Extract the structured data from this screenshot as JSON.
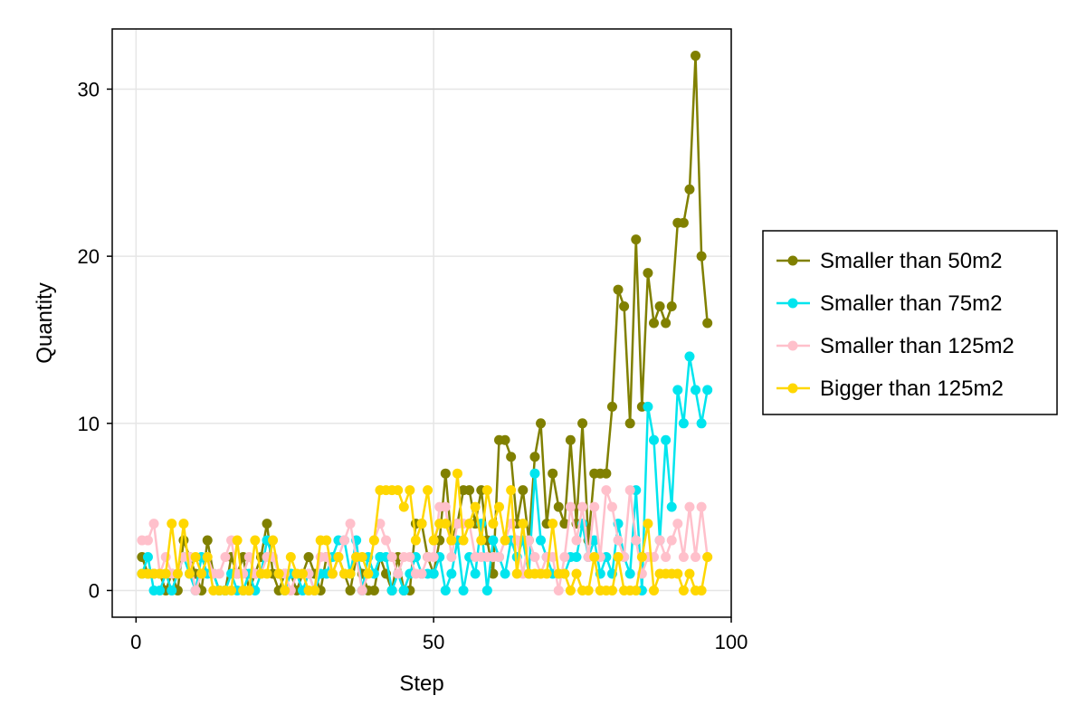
{
  "chart_data": {
    "type": "line",
    "title": "",
    "xlabel": "Step",
    "ylabel": "Quantity",
    "xlim": [
      -4,
      100
    ],
    "ylim": [
      -1.6,
      33.6
    ],
    "xticks": [
      0,
      50,
      100
    ],
    "yticks": [
      0,
      10,
      20,
      30
    ],
    "grid": true,
    "legend_position": "right",
    "x": [
      1,
      2,
      3,
      4,
      5,
      6,
      7,
      8,
      9,
      10,
      11,
      12,
      13,
      14,
      15,
      16,
      17,
      18,
      19,
      20,
      21,
      22,
      23,
      24,
      25,
      26,
      27,
      28,
      29,
      30,
      31,
      32,
      33,
      34,
      35,
      36,
      37,
      38,
      39,
      40,
      41,
      42,
      43,
      44,
      45,
      46,
      47,
      48,
      49,
      50,
      51,
      52,
      53,
      54,
      55,
      56,
      57,
      58,
      59,
      60,
      61,
      62,
      63,
      64,
      65,
      66,
      67,
      68,
      69,
      70,
      71,
      72,
      73,
      74,
      75,
      76,
      77,
      78,
      79,
      80,
      81,
      82,
      83,
      84,
      85,
      86,
      87,
      88,
      89,
      90,
      91,
      92,
      93,
      94,
      95,
      96
    ],
    "series": [
      {
        "name": "Smaller than 50m2",
        "color": "#808000",
        "values": [
          2,
          1,
          1,
          1,
          0,
          1,
          0,
          3,
          2,
          1,
          0,
          3,
          1,
          0,
          0,
          2,
          1,
          2,
          0,
          1,
          2,
          4,
          1,
          0,
          1,
          1,
          0,
          1,
          2,
          1,
          0,
          2,
          1,
          2,
          1,
          0,
          2,
          1,
          0,
          0,
          2,
          1,
          0,
          2,
          0,
          0,
          4,
          4,
          2,
          1,
          3,
          7,
          3,
          4,
          6,
          6,
          4,
          6,
          3,
          1,
          9,
          9,
          8,
          4,
          6,
          3,
          8,
          10,
          4,
          7,
          5,
          4,
          9,
          4,
          10,
          3,
          7,
          7,
          7,
          11,
          18,
          17,
          10,
          21,
          11,
          19,
          16,
          17,
          16,
          17,
          22,
          22,
          24,
          32,
          20,
          16
        ]
      },
      {
        "name": "Smaller than 75m2",
        "color": "#00e5ee",
        "values": [
          1,
          2,
          0,
          0,
          1,
          0,
          1,
          2,
          1,
          0,
          2,
          1,
          1,
          0,
          0,
          1,
          0,
          0,
          1,
          0,
          1,
          3,
          2,
          1,
          0,
          1,
          1,
          0,
          1,
          0,
          1,
          1,
          2,
          3,
          3,
          1,
          3,
          0,
          2,
          1,
          2,
          2,
          0,
          1,
          0,
          1,
          2,
          1,
          1,
          1,
          2,
          0,
          1,
          3,
          0,
          2,
          1,
          4,
          0,
          3,
          2,
          1,
          3,
          2,
          3,
          1,
          7,
          3,
          2,
          1,
          1,
          1,
          2,
          2,
          4,
          2,
          3,
          1,
          2,
          1,
          4,
          2,
          1,
          6,
          0,
          11,
          9,
          3,
          9,
          5,
          12,
          10,
          14,
          12,
          10,
          12
        ]
      },
      {
        "name": "Smaller than 125m2",
        "color": "#ffc0cb",
        "values": [
          3,
          3,
          4,
          1,
          2,
          1,
          1,
          2,
          2,
          0,
          1,
          2,
          1,
          1,
          2,
          3,
          1,
          1,
          2,
          1,
          1,
          2,
          2,
          1,
          1,
          0,
          1,
          1,
          1,
          0,
          2,
          2,
          1,
          2,
          3,
          4,
          2,
          0,
          1,
          3,
          4,
          3,
          2,
          1,
          2,
          2,
          1,
          1,
          2,
          2,
          5,
          5,
          2,
          4,
          4,
          4,
          2,
          2,
          2,
          2,
          2,
          3,
          4,
          3,
          1,
          3,
          2,
          1,
          2,
          2,
          0,
          2,
          5,
          3,
          5,
          2,
          5,
          2,
          6,
          5,
          3,
          2,
          6,
          3,
          1,
          2,
          2,
          3,
          2,
          3,
          4,
          2,
          5,
          2,
          5,
          2
        ]
      },
      {
        "name": "Bigger than 125m2",
        "color": "#ffd700",
        "values": [
          1,
          1,
          1,
          1,
          1,
          4,
          1,
          4,
          1,
          2,
          1,
          2,
          0,
          0,
          0,
          0,
          3,
          0,
          0,
          3,
          1,
          1,
          3,
          1,
          0,
          2,
          1,
          1,
          0,
          0,
          3,
          3,
          1,
          2,
          1,
          1,
          2,
          2,
          1,
          3,
          6,
          6,
          6,
          6,
          5,
          6,
          3,
          4,
          6,
          3,
          4,
          4,
          3,
          7,
          3,
          4,
          5,
          3,
          6,
          4,
          5,
          3,
          6,
          1,
          4,
          1,
          1,
          1,
          1,
          4,
          1,
          1,
          0,
          1,
          0,
          0,
          2,
          0,
          0,
          0,
          2,
          0,
          0,
          0,
          2,
          4,
          0,
          1,
          1,
          1,
          1,
          0,
          1,
          0,
          0,
          2
        ]
      }
    ]
  }
}
